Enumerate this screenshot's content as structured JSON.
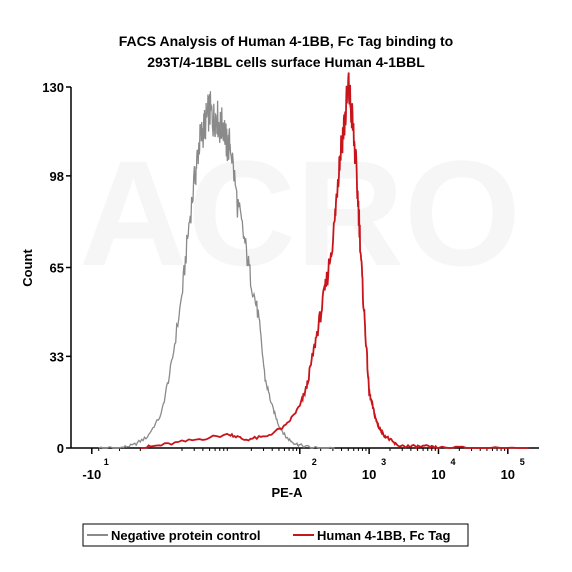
{
  "chart_data": {
    "type": "line",
    "title_lines": [
      "FACS Analysis of  Human 4-1BB, Fc Tag binding to",
      "293T/4-1BBL cells surface Human 4-1BBL"
    ],
    "xlabel": "PE-A",
    "ylabel": "Count",
    "x_scale": "biexponential (log)",
    "x_ticks": [
      {
        "base": "-10",
        "exp": "1",
        "value": -10
      },
      {
        "base": "10",
        "exp": "2",
        "value": 100
      },
      {
        "base": "10",
        "exp": "3",
        "value": 1000
      },
      {
        "base": "10",
        "exp": "4",
        "value": 10000
      },
      {
        "base": "10",
        "exp": "5",
        "value": 100000
      }
    ],
    "y_ticks": [
      "0",
      "33",
      "65",
      "98",
      "130"
    ],
    "ylim": [
      0,
      130
    ],
    "xlim_log10": [
      -1.3,
      5.45
    ],
    "grid": false,
    "legend_position": "bottom",
    "series": [
      {
        "name": "Negative protein control",
        "color": "#8a8a8a",
        "x_log10": [
          -0.9,
          -0.6,
          -0.4,
          -0.2,
          0.0,
          0.15,
          0.3,
          0.4,
          0.5,
          0.55,
          0.6,
          0.65,
          0.7,
          0.75,
          0.8,
          0.85,
          0.9,
          0.95,
          1.0,
          1.1,
          1.2,
          1.3,
          1.4,
          1.5,
          1.6,
          1.7,
          1.8,
          1.9,
          2.0,
          2.2,
          2.5
        ],
        "y": [
          0,
          0,
          1,
          4,
          12,
          30,
          55,
          80,
          100,
          110,
          114,
          118,
          122,
          118,
          120,
          115,
          117,
          108,
          110,
          88,
          75,
          60,
          48,
          25,
          15,
          8,
          4,
          2,
          1,
          0,
          0
        ]
      },
      {
        "name": "Human 4-1BB, Fc Tag",
        "color": "#c8151b",
        "x_log10": [
          -0.3,
          0.0,
          0.5,
          1.0,
          1.2,
          1.5,
          1.8,
          2.0,
          2.1,
          2.2,
          2.3,
          2.4,
          2.5,
          2.55,
          2.6,
          2.65,
          2.7,
          2.75,
          2.8,
          2.85,
          2.9,
          2.95,
          3.0,
          3.05,
          3.1,
          3.15,
          3.2,
          3.3,
          3.4,
          3.6,
          3.8,
          4.0,
          4.5,
          5.3
        ],
        "y": [
          0,
          1,
          3,
          5,
          3,
          4,
          8,
          15,
          22,
          35,
          48,
          62,
          80,
          98,
          110,
          118,
          130,
          120,
          105,
          85,
          60,
          40,
          20,
          15,
          10,
          7,
          5,
          3,
          1,
          0.5,
          0.5,
          0,
          0,
          0
        ]
      }
    ]
  },
  "watermark": "ACRO",
  "colors": {
    "axis": "#000000",
    "negative": "#8a8a8a",
    "positive": "#c8151b"
  }
}
